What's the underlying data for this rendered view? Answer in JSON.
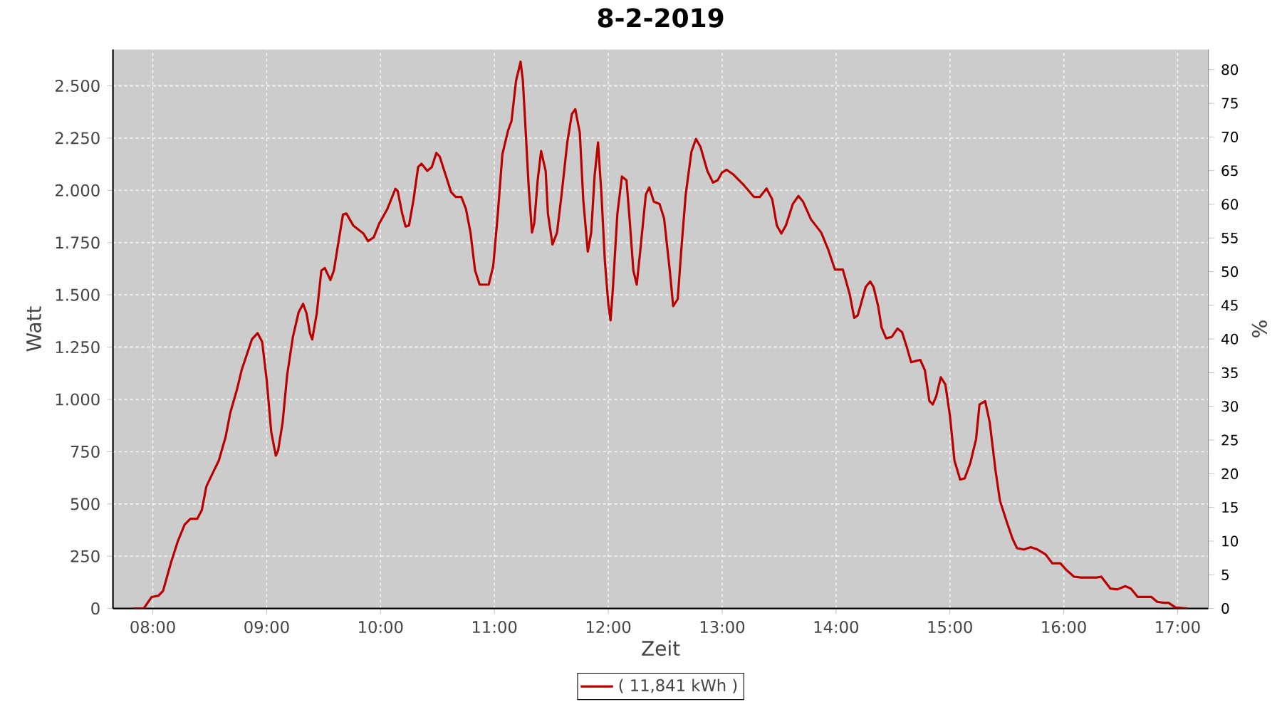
{
  "chart_data": {
    "type": "line",
    "title": "8-2-2019",
    "xlabel": "Zeit",
    "ylabel": "Watt",
    "y2label": "%",
    "xlim": [
      7.65,
      17.27
    ],
    "xticks": [
      {
        "value": 8,
        "label": "08:00"
      },
      {
        "value": 9,
        "label": "09:00"
      },
      {
        "value": 10,
        "label": "10:00"
      },
      {
        "value": 11,
        "label": "11:00"
      },
      {
        "value": 12,
        "label": "12:00"
      },
      {
        "value": 13,
        "label": "13:00"
      },
      {
        "value": 14,
        "label": "14:00"
      },
      {
        "value": 15,
        "label": "15:00"
      },
      {
        "value": 16,
        "label": "16:00"
      },
      {
        "value": 17,
        "label": "17:00"
      }
    ],
    "ylim": [
      0,
      2674
    ],
    "yticks": [
      0,
      250,
      500,
      750,
      {
        "value": 1000,
        "label": "1.000"
      },
      {
        "value": 1250,
        "label": "1.250"
      },
      {
        "value": 1500,
        "label": "1.500"
      },
      {
        "value": 1750,
        "label": "1.750"
      },
      {
        "value": 2000,
        "label": "2.000"
      },
      {
        "value": 2250,
        "label": "2.250"
      },
      {
        "value": 2500,
        "label": "2.500"
      }
    ],
    "y2lim": [
      0,
      83
    ],
    "y2ticks": [
      0,
      5,
      10,
      15,
      20,
      25,
      30,
      35,
      40,
      45,
      50,
      55,
      60,
      65,
      70,
      75,
      80
    ],
    "grid": true,
    "legend": "bottom",
    "series": [
      {
        "name": "( 11,841 kWh )",
        "color": "#bb0000",
        "x": [
          7.83,
          7.92,
          7.99,
          8.05,
          8.09,
          8.16,
          8.22,
          8.28,
          8.33,
          8.39,
          8.43,
          8.47,
          8.53,
          8.58,
          8.64,
          8.68,
          8.74,
          8.78,
          8.87,
          8.92,
          8.96,
          9.0,
          9.04,
          9.08,
          9.1,
          9.14,
          9.18,
          9.23,
          9.28,
          9.32,
          9.35,
          9.38,
          9.4,
          9.44,
          9.48,
          9.51,
          9.56,
          9.59,
          9.63,
          9.67,
          9.7,
          9.76,
          9.85,
          9.89,
          9.94,
          9.99,
          10.06,
          10.13,
          10.15,
          10.19,
          10.22,
          10.25,
          10.29,
          10.33,
          10.36,
          10.41,
          10.45,
          10.49,
          10.52,
          10.58,
          10.62,
          10.66,
          10.71,
          10.75,
          10.79,
          10.83,
          10.87,
          10.95,
          10.99,
          11.03,
          11.07,
          11.12,
          11.15,
          11.19,
          11.23,
          11.25,
          11.28,
          11.3,
          11.33,
          11.35,
          11.38,
          11.41,
          11.45,
          11.47,
          11.51,
          11.55,
          11.59,
          11.64,
          11.68,
          11.71,
          11.75,
          11.78,
          11.82,
          11.85,
          11.88,
          11.91,
          11.94,
          11.97,
          12.0,
          12.02,
          12.04,
          12.08,
          12.12,
          12.16,
          12.19,
          12.22,
          12.25,
          12.28,
          12.33,
          12.36,
          12.4,
          12.45,
          12.49,
          12.54,
          12.57,
          12.61,
          12.64,
          12.68,
          12.73,
          12.77,
          12.81,
          12.87,
          12.92,
          12.96,
          13.0,
          13.04,
          13.1,
          13.19,
          13.28,
          13.33,
          13.39,
          13.44,
          13.48,
          13.52,
          13.56,
          13.62,
          13.67,
          13.71,
          13.78,
          13.87,
          13.93,
          13.99,
          14.06,
          14.12,
          14.16,
          14.19,
          14.22,
          14.26,
          14.3,
          14.33,
          14.37,
          14.4,
          14.44,
          14.49,
          14.54,
          14.58,
          14.62,
          14.66,
          14.71,
          14.74,
          14.78,
          14.82,
          14.85,
          14.88,
          14.92,
          14.96,
          15.0,
          15.04,
          15.09,
          15.13,
          15.18,
          15.23,
          15.26,
          15.31,
          15.35,
          15.4,
          15.44,
          15.5,
          15.55,
          15.59,
          15.65,
          15.71,
          15.77,
          15.84,
          15.9,
          15.97,
          16.02,
          16.09,
          16.15,
          16.29,
          16.33,
          16.41,
          16.47,
          16.54,
          16.59,
          16.65,
          16.77,
          16.82,
          16.88,
          16.92,
          16.98,
          17.09
        ],
        "values": [
          0,
          0,
          55,
          61,
          84,
          220,
          322,
          402,
          429,
          429,
          470,
          583,
          652,
          708,
          822,
          935,
          1049,
          1140,
          1287,
          1317,
          1276,
          1094,
          845,
          731,
          754,
          890,
          1117,
          1298,
          1416,
          1457,
          1412,
          1317,
          1287,
          1412,
          1616,
          1628,
          1571,
          1616,
          1752,
          1884,
          1889,
          1832,
          1793,
          1757,
          1775,
          1843,
          1911,
          2007,
          1998,
          1889,
          1827,
          1832,
          1957,
          2111,
          2127,
          2093,
          2111,
          2179,
          2161,
          2059,
          1991,
          1968,
          1968,
          1911,
          1798,
          1617,
          1549,
          1549,
          1639,
          1889,
          2173,
          2286,
          2331,
          2524,
          2615,
          2524,
          2229,
          2025,
          1798,
          1843,
          2048,
          2188,
          2093,
          1889,
          1741,
          1798,
          1980,
          2229,
          2365,
          2388,
          2275,
          1957,
          1707,
          1798,
          2070,
          2229,
          1980,
          1662,
          1458,
          1378,
          1526,
          1889,
          2066,
          2048,
          1843,
          1617,
          1549,
          1707,
          1980,
          2014,
          1946,
          1935,
          1866,
          1617,
          1446,
          1480,
          1707,
          1980,
          2184,
          2246,
          2207,
          2093,
          2037,
          2048,
          2086,
          2098,
          2075,
          2025,
          1968,
          1968,
          2009,
          1957,
          1832,
          1793,
          1832,
          1934,
          1973,
          1946,
          1861,
          1798,
          1719,
          1621,
          1621,
          1503,
          1390,
          1401,
          1458,
          1537,
          1564,
          1537,
          1446,
          1344,
          1292,
          1299,
          1339,
          1322,
          1253,
          1178,
          1185,
          1189,
          1140,
          992,
          976,
          1015,
          1106,
          1072,
          924,
          708,
          617,
          622,
          697,
          810,
          976,
          992,
          890,
          663,
          515,
          413,
          334,
          288,
          282,
          293,
          282,
          259,
          216,
          216,
          186,
          152,
          148,
          148,
          152,
          95,
          91,
          107,
          95,
          55,
          55,
          32,
          27,
          27,
          5,
          0
        ]
      }
    ]
  }
}
